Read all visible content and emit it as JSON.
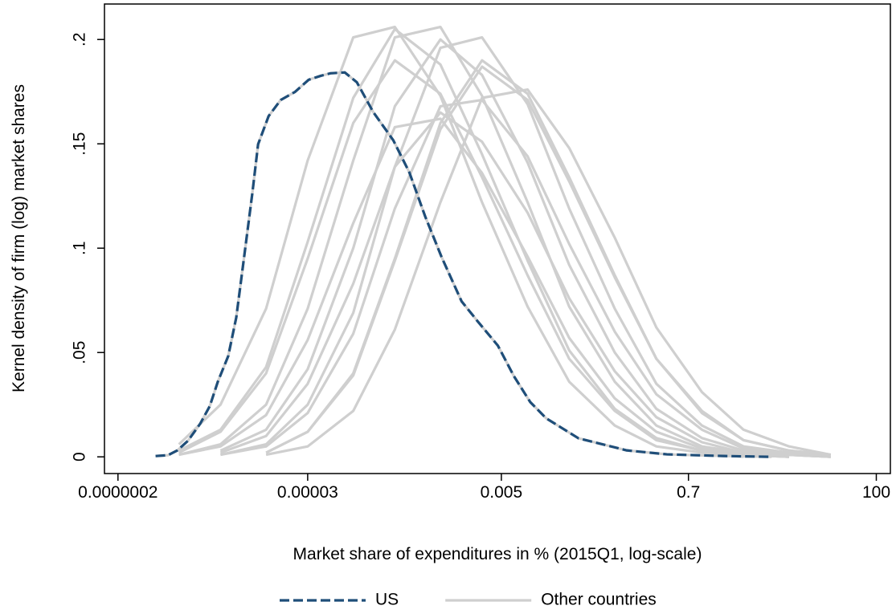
{
  "chart_data": {
    "type": "line",
    "xlabel": "Market share of expenditures in % (2015Q1, log-scale)",
    "ylabel": "Kernel density of firm (log) market shares",
    "xscale": "log",
    "xlim": [
      1.4e-07,
      145
    ],
    "ylim": [
      -0.008,
      0.217
    ],
    "xticks": [
      {
        "value": 2e-07,
        "label": "0.0000002"
      },
      3e-05,
      0.005,
      0.7,
      100
    ],
    "yticks": [
      0,
      {
        "value": 0.05,
        "label": ".05"
      },
      {
        "value": 0.1,
        "label": ".1"
      },
      {
        "value": 0.15,
        "label": ".15"
      },
      {
        "value": 0.2,
        "label": ".2"
      }
    ],
    "legend": "bottom",
    "series": [
      {
        "name": "US",
        "color": "#1f4e79",
        "style": "dashed",
        "x": [
          5.4e-07,
          7.5e-07,
          9.6e-07,
          1.27e-06,
          1.75e-06,
          2.26e-06,
          2.79e-06,
          3.68e-06,
          4.55e-06,
          5.6e-06,
          6.97e-06,
          8.1e-06,
          1.07e-05,
          1.47e-05,
          2.15e-05,
          3.08e-05,
          4.25e-05,
          5.48e-05,
          8e-05,
          0.00011,
          0.000169,
          0.000288,
          0.00044,
          0.00067,
          0.00103,
          0.00175,
          0.00268,
          0.00456,
          0.00698,
          0.0107,
          0.0163,
          0.0383,
          0.137,
          0.396,
          1.76,
          6.3
        ],
        "values": [
          0.0004,
          0.0008,
          0.0031,
          0.0077,
          0.0158,
          0.0243,
          0.0359,
          0.0483,
          0.0668,
          0.0958,
          0.1266,
          0.1498,
          0.1633,
          0.171,
          0.1749,
          0.1807,
          0.1826,
          0.1838,
          0.1842,
          0.1795,
          0.1653,
          0.1517,
          0.1363,
          0.1151,
          0.0958,
          0.0745,
          0.0649,
          0.0533,
          0.0386,
          0.0263,
          0.0185,
          0.0089,
          0.0031,
          0.0012,
          0.0004,
          0
        ]
      },
      {
        "name": "Other countries",
        "color": "#cfcfcf",
        "style": "solid",
        "x": [
          1e-06,
          3e-06,
          1e-05,
          3e-05,
          0.0001,
          0.0003,
          0.001,
          0.003,
          0.01,
          0.03,
          0.1,
          0.3,
          1,
          3,
          10,
          30
        ],
        "curves": [
          [
            0.006,
            0.025,
            0.071,
            0.142,
            0.201,
            0.206,
            0.173,
            0.122,
            0.072,
            0.036,
            0.015,
            0.005,
            0.002,
            0,
            null,
            null
          ],
          [
            0.003,
            0.013,
            0.043,
            0.103,
            0.172,
            0.205,
            0.188,
            0.145,
            0.094,
            0.051,
            0.023,
            0.009,
            0.003,
            0.001,
            0,
            null
          ],
          [
            0.001,
            0.006,
            0.025,
            0.071,
            0.142,
            0.201,
            0.206,
            0.173,
            0.122,
            0.072,
            0.036,
            0.015,
            0.005,
            0.002,
            0,
            null
          ],
          [
            null,
            0.003,
            0.013,
            0.042,
            0.1,
            0.168,
            0.2,
            0.183,
            0.141,
            0.092,
            0.05,
            0.023,
            0.009,
            0.003,
            0.001,
            0
          ],
          [
            null,
            0.001,
            0.006,
            0.025,
            0.069,
            0.139,
            0.196,
            0.201,
            0.169,
            0.119,
            0.071,
            0.035,
            0.015,
            0.005,
            0.002,
            0
          ],
          [
            null,
            null,
            0.002,
            0.012,
            0.04,
            0.095,
            0.16,
            0.19,
            0.174,
            0.134,
            0.087,
            0.047,
            0.022,
            0.008,
            0.003,
            0.001
          ],
          [
            null,
            null,
            0.001,
            0.005,
            0.022,
            0.061,
            0.122,
            0.172,
            0.176,
            0.148,
            0.105,
            0.062,
            0.031,
            0.013,
            0.005,
            0.001
          ],
          [
            0.002,
            0.012,
            0.04,
            0.095,
            0.16,
            0.19,
            0.174,
            0.134,
            0.087,
            0.047,
            0.022,
            0.008,
            0.003,
            0.001,
            0,
            null
          ],
          [
            null,
            0.002,
            0.01,
            0.035,
            0.083,
            0.139,
            0.165,
            0.151,
            0.117,
            0.076,
            0.041,
            0.019,
            0.007,
            0.002,
            0.001,
            0
          ],
          [
            null,
            0.001,
            0.005,
            0.021,
            0.059,
            0.119,
            0.168,
            0.171,
            0.144,
            0.102,
            0.06,
            0.03,
            0.013,
            0.004,
            0.001,
            0
          ],
          [
            null,
            null,
            0.002,
            0.012,
            0.039,
            0.094,
            0.157,
            0.187,
            0.171,
            0.132,
            0.086,
            0.047,
            0.021,
            0.008,
            0.003,
            0.001
          ],
          [
            0.001,
            0.005,
            0.02,
            0.056,
            0.112,
            0.158,
            0.162,
            0.136,
            0.096,
            0.057,
            0.028,
            0.012,
            0.004,
            0.001,
            0,
            null
          ]
        ]
      }
    ]
  }
}
